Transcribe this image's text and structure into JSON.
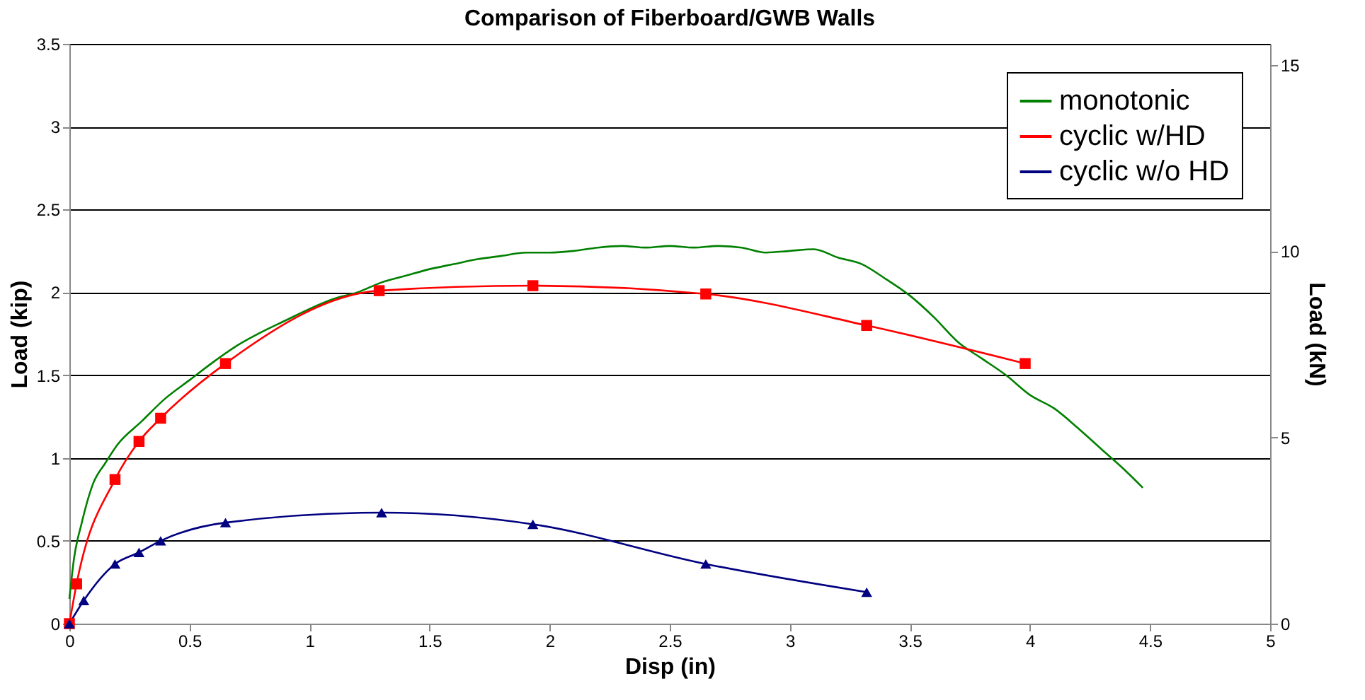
{
  "chart_data": {
    "type": "line",
    "title": "Comparison of Fiberboard/GWB Walls",
    "xlabel": "Disp (in)",
    "ylabel": "Load (kip)",
    "y2label": "Load (kN)",
    "xlim": [
      0,
      5
    ],
    "xticks": [
      0,
      0.5,
      1,
      1.5,
      2,
      2.5,
      3,
      3.5,
      4,
      4.5,
      5
    ],
    "ylim": [
      0,
      3.5
    ],
    "yticks": [
      0,
      0.5,
      1,
      1.5,
      2,
      2.5,
      3,
      3.5
    ],
    "y2lim": [
      0,
      15.57
    ],
    "y2ticks": [
      0,
      5,
      10,
      15
    ],
    "grid": "y",
    "legend": "top right",
    "line_style": "solid",
    "series": [
      {
        "name": "monotonic",
        "color": "#008000",
        "marker": "none",
        "x": [
          0,
          0.02,
          0.05,
          0.1,
          0.15,
          0.2,
          0.3,
          0.4,
          0.5,
          0.6,
          0.7,
          0.8,
          0.9,
          1.0,
          1.1,
          1.2,
          1.3,
          1.4,
          1.5,
          1.6,
          1.7,
          1.8,
          1.9,
          2.0,
          2.1,
          2.2,
          2.3,
          2.4,
          2.5,
          2.6,
          2.7,
          2.8,
          2.9,
          3.0,
          3.1,
          3.2,
          3.3,
          3.4,
          3.5,
          3.6,
          3.7,
          3.8,
          3.9,
          4.0,
          4.1,
          4.2,
          4.3,
          4.4,
          4.47
        ],
        "values": [
          0.15,
          0.4,
          0.6,
          0.85,
          0.97,
          1.08,
          1.22,
          1.36,
          1.47,
          1.58,
          1.68,
          1.76,
          1.83,
          1.9,
          1.96,
          2.0,
          2.06,
          2.1,
          2.14,
          2.17,
          2.2,
          2.22,
          2.24,
          2.24,
          2.25,
          2.27,
          2.28,
          2.27,
          2.28,
          2.27,
          2.28,
          2.27,
          2.24,
          2.25,
          2.26,
          2.21,
          2.17,
          2.08,
          1.98,
          1.85,
          1.7,
          1.6,
          1.5,
          1.38,
          1.3,
          1.18,
          1.05,
          0.92,
          0.82
        ]
      },
      {
        "name": "cyclic w/HD",
        "color": "#ff0000",
        "marker": "square",
        "x": [
          0,
          0.03,
          0.19,
          0.29,
          0.38,
          0.65,
          1.29,
          1.93,
          2.65,
          3.32,
          3.98
        ],
        "values": [
          0,
          0.24,
          0.87,
          1.1,
          1.24,
          1.57,
          2.01,
          2.04,
          1.99,
          1.8,
          1.57
        ]
      },
      {
        "name": "cyclic w/o HD",
        "color": "#000080",
        "marker": "triangle",
        "x": [
          0,
          0.06,
          0.19,
          0.29,
          0.38,
          0.65,
          1.3,
          1.93,
          2.65,
          3.32
        ],
        "values": [
          0,
          0.14,
          0.36,
          0.43,
          0.5,
          0.61,
          0.67,
          0.6,
          0.36,
          0.19
        ]
      }
    ]
  }
}
